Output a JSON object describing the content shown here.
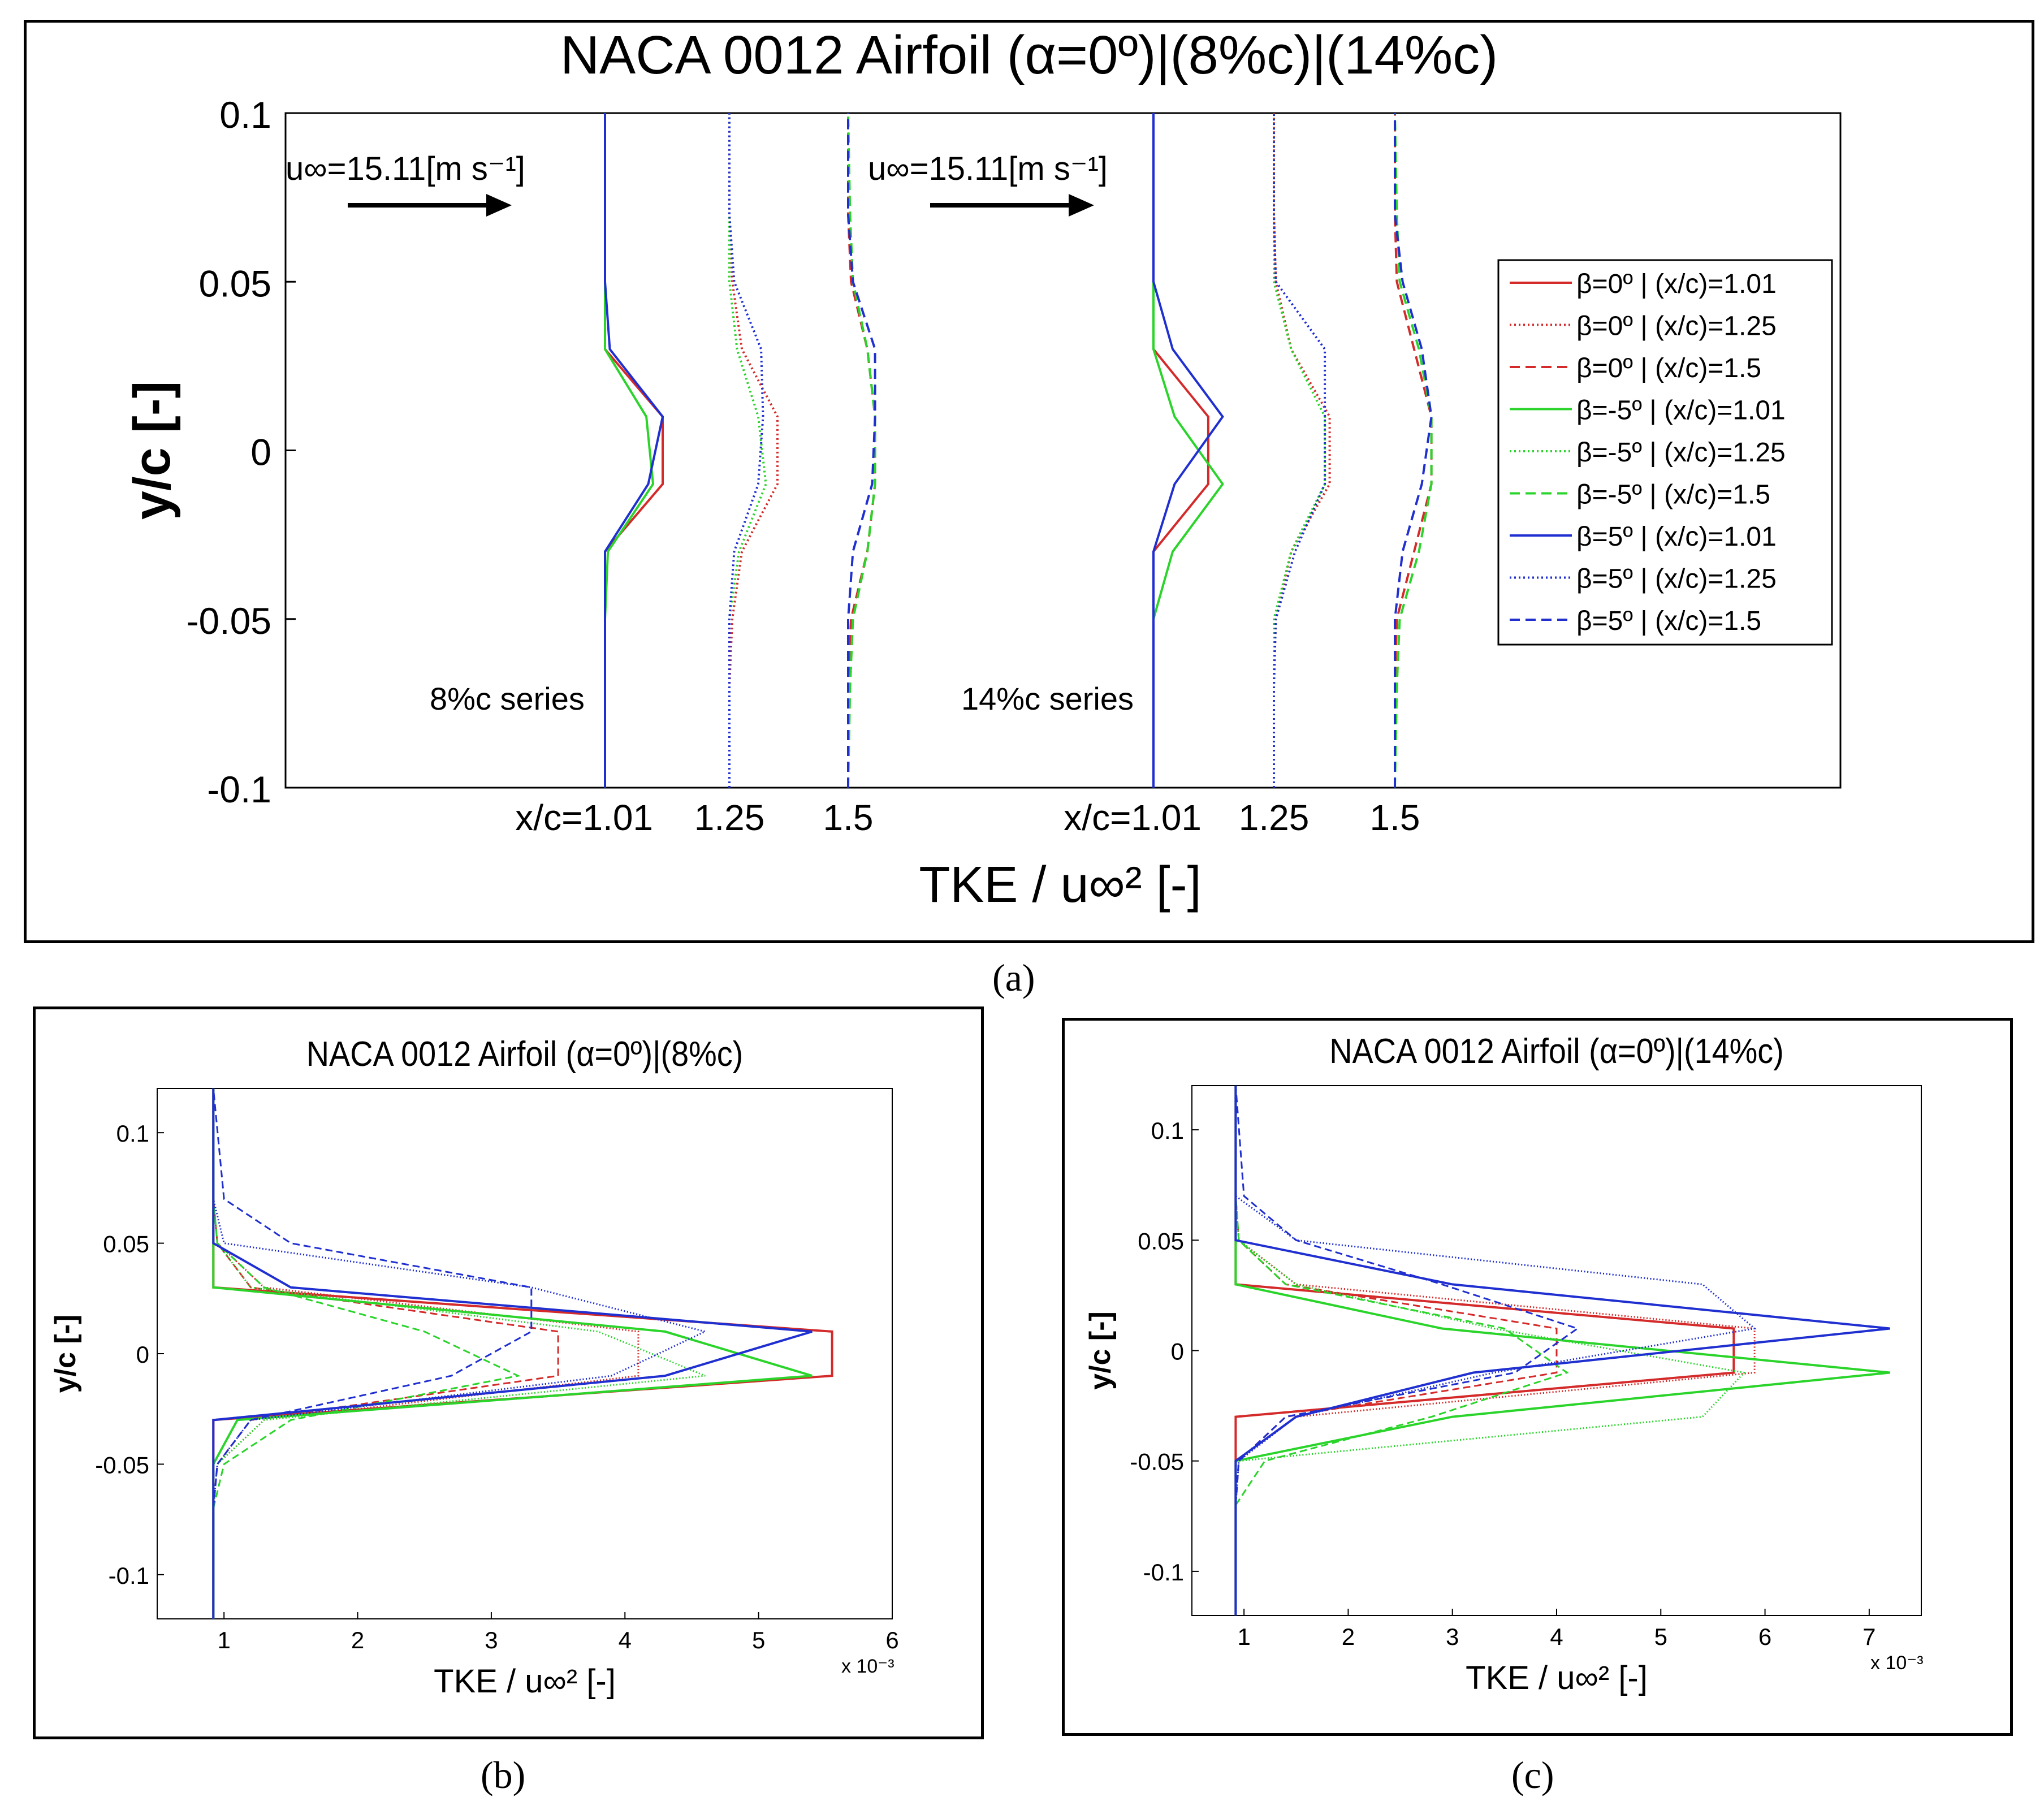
{
  "captions": {
    "a": "(a)",
    "b": "(b)",
    "c": "(c)"
  },
  "colors": {
    "red": "#d42a2a",
    "green": "#2ad42a",
    "blue": "#1f2fd0"
  },
  "chart_data": [
    {
      "id": "a",
      "type": "line",
      "title": "NACA 0012 Airfoil (α=0º)|(8%c)|(14%c)",
      "xlabel": "TKE / u∞² [-]",
      "ylabel": "y/c [-]",
      "ylim": [
        -0.1,
        0.1
      ],
      "yticks": [
        "0.1",
        "0.05",
        "0",
        "-0.05",
        "-0.1"
      ],
      "xticks": [
        {
          "label": "x/c=1.01",
          "group": 0,
          "station": 0
        },
        {
          "label": "1.25",
          "group": 0,
          "station": 1
        },
        {
          "label": "1.5",
          "group": 0,
          "station": 2
        },
        {
          "label": "x/c=1.01",
          "group": 1,
          "station": 0
        },
        {
          "label": "1.25",
          "group": 1,
          "station": 1
        },
        {
          "label": "1.5",
          "group": 1,
          "station": 2
        }
      ],
      "annotations": {
        "freestream": "u∞=15.11[m s⁻¹]",
        "series_8": "8%c series",
        "series_14": "14%c series"
      },
      "legend": [
        {
          "label": "β=0º | (x/c)=1.01",
          "color": "red",
          "dash": "solid"
        },
        {
          "label": "β=0º | (x/c)=1.25",
          "color": "red",
          "dash": "dotted"
        },
        {
          "label": "β=0º | (x/c)=1.5",
          "color": "red",
          "dash": "dashed"
        },
        {
          "label": "β=-5º | (x/c)=1.01",
          "color": "green",
          "dash": "solid"
        },
        {
          "label": "β=-5º | (x/c)=1.25",
          "color": "green",
          "dash": "dotted"
        },
        {
          "label": "β=-5º | (x/c)=1.5",
          "color": "green",
          "dash": "dashed"
        },
        {
          "label": "β=5º | (x/c)=1.01",
          "color": "blue",
          "dash": "solid"
        },
        {
          "label": "β=5º | (x/c)=1.25",
          "color": "blue",
          "dash": "dotted"
        },
        {
          "label": "β=5º | (x/c)=1.5",
          "color": "blue",
          "dash": "dashed"
        }
      ],
      "y": [
        -0.1,
        -0.07,
        -0.05,
        -0.03,
        -0.01,
        0.01,
        0.03,
        0.05,
        0.07,
        0.1
      ],
      "offset_scale": 0.3,
      "series": [
        {
          "group": 0,
          "station": 0,
          "color": "red",
          "dash": "solid",
          "tke": [
            0,
            0,
            0,
            0,
            0.6,
            0.6,
            0,
            0,
            0,
            0
          ]
        },
        {
          "group": 0,
          "station": 0,
          "color": "green",
          "dash": "solid",
          "tke": [
            0,
            0,
            0,
            0.03,
            0.5,
            0.43,
            0,
            0,
            0,
            0
          ]
        },
        {
          "group": 0,
          "station": 0,
          "color": "blue",
          "dash": "solid",
          "tke": [
            0,
            0,
            0,
            0,
            0.45,
            0.6,
            0.05,
            0,
            0,
            0
          ]
        },
        {
          "group": 0,
          "station": 1,
          "color": "red",
          "dash": "dotted",
          "tke": [
            0,
            0,
            0.03,
            0.13,
            0.5,
            0.5,
            0.13,
            0.03,
            0,
            0
          ]
        },
        {
          "group": 0,
          "station": 1,
          "color": "green",
          "dash": "dotted",
          "tke": [
            0,
            0,
            0,
            0.1,
            0.38,
            0.3,
            0.08,
            0,
            0,
            0
          ]
        },
        {
          "group": 0,
          "station": 1,
          "color": "blue",
          "dash": "dotted",
          "tke": [
            0,
            0,
            0,
            0.05,
            0.3,
            0.35,
            0.33,
            0.05,
            0,
            0
          ]
        },
        {
          "group": 0,
          "station": 2,
          "color": "red",
          "dash": "dashed",
          "tke": [
            0,
            0,
            0.03,
            0.2,
            0.28,
            0.28,
            0.2,
            0.03,
            0,
            0
          ]
        },
        {
          "group": 0,
          "station": 2,
          "color": "green",
          "dash": "dashed",
          "tke": [
            0,
            0.02,
            0.05,
            0.2,
            0.28,
            0.28,
            0.2,
            0.05,
            0.02,
            0
          ]
        },
        {
          "group": 0,
          "station": 2,
          "color": "blue",
          "dash": "dashed",
          "tke": [
            0,
            0,
            0,
            0.05,
            0.25,
            0.28,
            0.28,
            0.05,
            0,
            0
          ]
        },
        {
          "group": 1,
          "station": 0,
          "color": "red",
          "dash": "solid",
          "tke": [
            0,
            0,
            0,
            0,
            0.57,
            0.57,
            0,
            0,
            0,
            0
          ]
        },
        {
          "group": 1,
          "station": 0,
          "color": "green",
          "dash": "solid",
          "tke": [
            0,
            0,
            0,
            0.2,
            0.72,
            0.22,
            0,
            0,
            0,
            0
          ]
        },
        {
          "group": 1,
          "station": 0,
          "color": "blue",
          "dash": "solid",
          "tke": [
            0,
            0,
            0,
            0,
            0.22,
            0.72,
            0.2,
            0,
            0,
            0
          ]
        },
        {
          "group": 1,
          "station": 1,
          "color": "red",
          "dash": "dotted",
          "tke": [
            0,
            0,
            0.02,
            0.18,
            0.58,
            0.58,
            0.18,
            0.02,
            0,
            0
          ]
        },
        {
          "group": 1,
          "station": 1,
          "color": "green",
          "dash": "dotted",
          "tke": [
            0,
            0,
            0,
            0.18,
            0.53,
            0.53,
            0.18,
            0,
            0,
            0
          ]
        },
        {
          "group": 1,
          "station": 1,
          "color": "blue",
          "dash": "dotted",
          "tke": [
            0,
            0,
            0.02,
            0.22,
            0.53,
            0.53,
            0.53,
            0.02,
            0,
            0
          ]
        },
        {
          "group": 1,
          "station": 2,
          "color": "red",
          "dash": "dashed",
          "tke": [
            0,
            0,
            0.02,
            0.2,
            0.38,
            0.38,
            0.2,
            0.02,
            0,
            0
          ]
        },
        {
          "group": 1,
          "station": 2,
          "color": "green",
          "dash": "dashed",
          "tke": [
            0,
            0.02,
            0.05,
            0.25,
            0.38,
            0.38,
            0.25,
            0.05,
            0.02,
            0
          ]
        },
        {
          "group": 1,
          "station": 2,
          "color": "blue",
          "dash": "dashed",
          "tke": [
            0,
            0,
            0,
            0.08,
            0.28,
            0.38,
            0.28,
            0.08,
            0,
            0
          ]
        }
      ]
    },
    {
      "id": "b",
      "type": "line",
      "title": "NACA 0012 Airfoil (α=0º)|(8%c)",
      "xlabel": "TKE / u∞² [-]",
      "ylabel": "y/c [-]",
      "xlim": [
        0.5,
        6
      ],
      "ylim": [
        -0.12,
        0.12
      ],
      "xticks": [
        1,
        2,
        3,
        4,
        5,
        6
      ],
      "yticks": [
        0.1,
        0.05,
        0,
        -0.05,
        -0.1
      ],
      "xscale_label": "x 10⁻³",
      "y": [
        -0.12,
        -0.07,
        -0.05,
        -0.03,
        -0.01,
        0.01,
        0.03,
        0.05,
        0.07,
        0.12
      ],
      "series": [
        {
          "beta": "0º",
          "xc": 1.01,
          "color": "red",
          "dash": "solid",
          "tke": [
            0.92,
            0.92,
            0.92,
            0.92,
            5.55,
            5.55,
            0.92,
            0.92,
            0.92,
            0.92
          ]
        },
        {
          "beta": "0º",
          "xc": 1.25,
          "color": "red",
          "dash": "dotted",
          "tke": [
            0.92,
            0.92,
            0.95,
            1.3,
            4.1,
            4.1,
            1.3,
            0.95,
            0.92,
            0.92
          ]
        },
        {
          "beta": "0º",
          "xc": 1.5,
          "color": "red",
          "dash": "dashed",
          "tke": [
            0.92,
            0.92,
            0.95,
            1.2,
            3.5,
            3.5,
            1.2,
            0.95,
            0.92,
            0.92
          ]
        },
        {
          "beta": "-5º",
          "xc": 1.01,
          "color": "green",
          "dash": "solid",
          "tke": [
            0.92,
            0.92,
            0.92,
            1.1,
            5.4,
            4.3,
            0.92,
            0.92,
            0.92,
            0.92
          ]
        },
        {
          "beta": "-5º",
          "xc": 1.25,
          "color": "green",
          "dash": "dotted",
          "tke": [
            0.92,
            0.92,
            0.95,
            1.3,
            4.6,
            3.8,
            1.2,
            0.95,
            0.92,
            0.92
          ]
        },
        {
          "beta": "-5º",
          "xc": 1.5,
          "color": "green",
          "dash": "dashed",
          "tke": [
            0.92,
            0.92,
            1.0,
            1.5,
            3.2,
            2.5,
            1.3,
            0.95,
            0.92,
            0.92
          ]
        },
        {
          "beta": "5º",
          "xc": 1.01,
          "color": "blue",
          "dash": "solid",
          "tke": [
            0.92,
            0.92,
            0.92,
            0.92,
            4.3,
            5.4,
            1.5,
            0.92,
            0.92,
            0.92
          ]
        },
        {
          "beta": "5º",
          "xc": 1.25,
          "color": "blue",
          "dash": "dotted",
          "tke": [
            0.92,
            0.92,
            0.95,
            1.2,
            3.9,
            4.6,
            3.3,
            1.0,
            0.92,
            0.92
          ]
        },
        {
          "beta": "5º",
          "xc": 1.5,
          "color": "blue",
          "dash": "dashed",
          "tke": [
            0.92,
            0.92,
            0.95,
            1.2,
            2.7,
            3.3,
            3.3,
            1.5,
            1.0,
            0.92
          ]
        }
      ]
    },
    {
      "id": "c",
      "type": "line",
      "title": "NACA 0012 Airfoil (α=0º)|(14%c)",
      "xlabel": "TKE / u∞² [-]",
      "ylabel": "y/c [-]",
      "xlim": [
        0.5,
        7.5
      ],
      "ylim": [
        -0.12,
        0.12
      ],
      "xticks": [
        1,
        2,
        3,
        4,
        5,
        6,
        7
      ],
      "yticks": [
        0.1,
        0.05,
        0,
        -0.05,
        -0.1
      ],
      "xscale_label": "x 10⁻³",
      "y": [
        -0.12,
        -0.07,
        -0.05,
        -0.03,
        -0.01,
        0.01,
        0.03,
        0.05,
        0.07,
        0.12
      ],
      "series": [
        {
          "beta": "0º",
          "xc": 1.01,
          "color": "red",
          "dash": "solid",
          "tke": [
            0.92,
            0.92,
            0.92,
            0.92,
            5.7,
            5.7,
            0.92,
            0.92,
            0.92,
            0.92
          ]
        },
        {
          "beta": "0º",
          "xc": 1.25,
          "color": "red",
          "dash": "dotted",
          "tke": [
            0.92,
            0.92,
            0.95,
            1.5,
            5.9,
            5.9,
            1.5,
            0.95,
            0.92,
            0.92
          ]
        },
        {
          "beta": "0º",
          "xc": 1.5,
          "color": "red",
          "dash": "dashed",
          "tke": [
            0.92,
            0.92,
            0.95,
            1.4,
            4.0,
            4.0,
            1.4,
            0.95,
            0.92,
            0.92
          ]
        },
        {
          "beta": "-5º",
          "xc": 1.01,
          "color": "green",
          "dash": "solid",
          "tke": [
            0.92,
            0.92,
            0.92,
            3.0,
            7.2,
            2.9,
            0.92,
            0.92,
            0.92,
            0.92
          ]
        },
        {
          "beta": "-5º",
          "xc": 1.25,
          "color": "green",
          "dash": "dotted",
          "tke": [
            0.92,
            0.92,
            0.95,
            5.4,
            5.8,
            3.4,
            1.5,
            0.95,
            0.92,
            0.92
          ]
        },
        {
          "beta": "-5º",
          "xc": 1.5,
          "color": "green",
          "dash": "dashed",
          "tke": [
            0.92,
            0.92,
            1.2,
            2.8,
            4.1,
            3.5,
            1.4,
            0.95,
            0.92,
            0.92
          ]
        },
        {
          "beta": "5º",
          "xc": 1.01,
          "color": "blue",
          "dash": "solid",
          "tke": [
            0.92,
            0.92,
            0.92,
            1.5,
            3.2,
            7.2,
            3.0,
            0.92,
            0.92,
            0.92
          ]
        },
        {
          "beta": "5º",
          "xc": 1.25,
          "color": "blue",
          "dash": "dotted",
          "tke": [
            0.92,
            0.92,
            0.95,
            1.5,
            3.4,
            5.9,
            5.4,
            1.5,
            0.92,
            0.92
          ]
        },
        {
          "beta": "5º",
          "xc": 1.5,
          "color": "blue",
          "dash": "dashed",
          "tke": [
            0.92,
            0.92,
            0.95,
            1.4,
            3.6,
            4.2,
            2.9,
            1.5,
            1.0,
            0.92
          ]
        }
      ]
    }
  ]
}
